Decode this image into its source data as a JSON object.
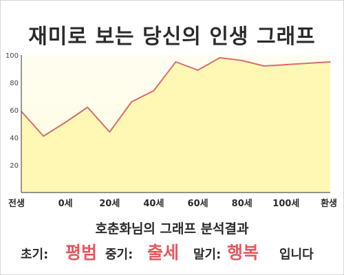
{
  "chart_data": {
    "type": "area",
    "title": "재미로 보는 당신의 인생 그래프",
    "x": [
      0,
      1,
      2,
      3,
      4,
      5,
      6,
      7,
      8,
      9,
      10,
      11,
      12,
      13,
      14
    ],
    "values": [
      59,
      41,
      51,
      62,
      44,
      66,
      74,
      95,
      89,
      98,
      96,
      92,
      93,
      94,
      95
    ],
    "xtick_labels": [
      "전생",
      "0세",
      "20세",
      "40세",
      "60세",
      "80세",
      "100세",
      "환생"
    ],
    "xtick_positions": [
      0,
      2,
      4,
      6,
      8,
      10,
      12,
      14
    ],
    "yticks": [
      20,
      40,
      60,
      80,
      100
    ],
    "ylim": [
      0,
      100
    ],
    "xlim": [
      0,
      14
    ],
    "line_color": "#d96a6f",
    "fill_color": "#fff8b5",
    "grid": false
  },
  "summary": {
    "title": "호춘화님의 그래프 분석결과",
    "early_label": "초기:",
    "early_value": "평범",
    "middle_label": "중기:",
    "middle_value": "출세",
    "late_label": "말기:",
    "late_value": "행복",
    "closing": "입니다"
  },
  "colors": {
    "value_highlight": "#e8575c",
    "text": "#2a2a2a"
  }
}
